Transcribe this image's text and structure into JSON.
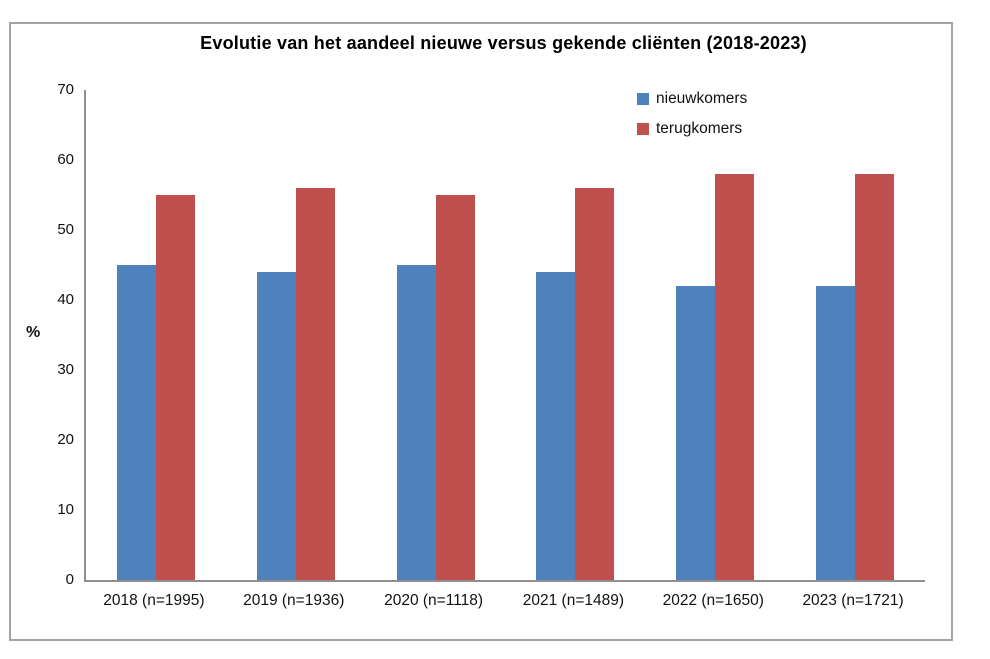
{
  "chart_data": {
    "type": "bar",
    "title": "Evolutie van het aandeel nieuwe versus gekende cliënten (2018-2023)",
    "xlabel": "",
    "ylabel": "%",
    "categories": [
      "2018 (n=1995)",
      "2019 (n=1936)",
      "2020 (n=1118)",
      "2021 (n=1489)",
      "2022 (n=1650)",
      "2023 (n=1721)"
    ],
    "series": [
      {
        "name": "nieuwkomers",
        "color": "#4f81bd",
        "values": [
          45,
          44,
          45,
          44,
          42,
          42
        ]
      },
      {
        "name": "terugkomers",
        "color": "#c0504d",
        "values": [
          55,
          56,
          55,
          56,
          58,
          58
        ]
      }
    ],
    "ylim": [
      0,
      70
    ],
    "ytick_step": 10,
    "grid": false,
    "legend_position": "top-right-inside"
  },
  "frame": {
    "border_color": "#a3a3a3",
    "axis_color": "#8f8f8f",
    "background": "#ffffff"
  }
}
